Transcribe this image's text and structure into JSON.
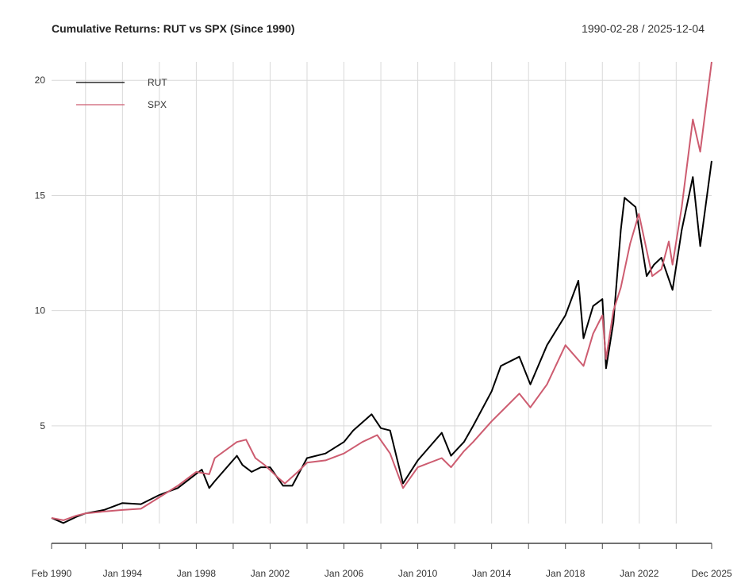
{
  "chart_data": {
    "type": "line",
    "title": "Cumulative Returns: RUT vs SPX (Since 1990)",
    "date_range": "1990-02-28 / 2025-12-04",
    "xlabel": "",
    "ylabel": "",
    "xlim": [
      1990.16,
      2025.92
    ],
    "ylim": [
      0.76,
      20.8
    ],
    "grid": true,
    "legend_position": "top-left",
    "y_ticks": [
      5,
      10,
      15,
      20
    ],
    "x_ticks": [
      {
        "x": 1990.16,
        "label": "Feb 1990"
      },
      {
        "x": 1992.0,
        "label": ""
      },
      {
        "x": 1994.0,
        "label": "Jan 1994"
      },
      {
        "x": 1996.0,
        "label": ""
      },
      {
        "x": 1998.0,
        "label": "Jan 1998"
      },
      {
        "x": 2000.0,
        "label": ""
      },
      {
        "x": 2002.0,
        "label": "Jan 2002"
      },
      {
        "x": 2004.0,
        "label": ""
      },
      {
        "x": 2006.0,
        "label": "Jan 2006"
      },
      {
        "x": 2008.0,
        "label": ""
      },
      {
        "x": 2010.0,
        "label": "Jan 2010"
      },
      {
        "x": 2012.0,
        "label": ""
      },
      {
        "x": 2014.0,
        "label": "Jan 2014"
      },
      {
        "x": 2016.0,
        "label": ""
      },
      {
        "x": 2018.0,
        "label": "Jan 2018"
      },
      {
        "x": 2020.0,
        "label": ""
      },
      {
        "x": 2022.0,
        "label": "Jan 2022"
      },
      {
        "x": 2024.0,
        "label": ""
      },
      {
        "x": 2025.92,
        "label": "Dec 2025"
      }
    ],
    "series": [
      {
        "name": "RUT",
        "color": "#000000",
        "x": [
          1990.16,
          1990.8,
          1991.5,
          1992,
          1993,
          1994,
          1995,
          1996,
          1997,
          1998.3,
          1998.7,
          1999,
          2000.2,
          2000.5,
          2001,
          2001.5,
          2002,
          2002.7,
          2003.2,
          2004,
          2005,
          2006,
          2006.5,
          2007.5,
          2008,
          2008.5,
          2009.2,
          2010,
          2011.3,
          2011.8,
          2012.5,
          2013,
          2014,
          2014.5,
          2015.5,
          2016.1,
          2017,
          2018,
          2018.7,
          2018.98,
          2019.5,
          2020.0,
          2020.2,
          2020.6,
          2021.0,
          2021.2,
          2021.8,
          2022.4,
          2022.8,
          2023.2,
          2023.8,
          2024.3,
          2024.9,
          2025.3,
          2025.92
        ],
        "y": [
          1.0,
          0.78,
          1.05,
          1.2,
          1.35,
          1.65,
          1.6,
          2.0,
          2.3,
          3.1,
          2.3,
          2.6,
          3.7,
          3.3,
          3.0,
          3.2,
          3.2,
          2.4,
          2.4,
          3.6,
          3.8,
          4.3,
          4.8,
          5.5,
          4.9,
          4.8,
          2.5,
          3.5,
          4.7,
          3.7,
          4.3,
          5.0,
          6.5,
          7.6,
          8.0,
          6.8,
          8.5,
          9.8,
          11.3,
          8.8,
          10.2,
          10.5,
          7.5,
          9.5,
          13.5,
          14.9,
          14.5,
          11.5,
          12.0,
          12.3,
          10.9,
          13.5,
          15.8,
          12.8,
          16.5
        ]
      },
      {
        "name": "SPX",
        "color": "#CD5C70",
        "x": [
          1990.16,
          1990.8,
          1991.5,
          1992,
          1993,
          1994,
          1995,
          1996,
          1997,
          1998,
          1998.7,
          1999,
          2000.2,
          2000.7,
          2001.2,
          2001.7,
          2002.5,
          2002.8,
          2003.5,
          2004,
          2005,
          2006,
          2007,
          2007.8,
          2008.5,
          2009.2,
          2010,
          2011.3,
          2011.8,
          2012.5,
          2013,
          2014,
          2015.5,
          2016.1,
          2017,
          2018,
          2018.98,
          2019.5,
          2020.0,
          2020.2,
          2020.6,
          2021.0,
          2021.5,
          2021.98,
          2022.7,
          2023.2,
          2023.6,
          2023.8,
          2024.3,
          2024.9,
          2025.3,
          2025.92
        ],
        "y": [
          1.0,
          0.9,
          1.1,
          1.2,
          1.28,
          1.35,
          1.4,
          1.9,
          2.4,
          3.0,
          2.9,
          3.6,
          4.3,
          4.4,
          3.6,
          3.3,
          2.7,
          2.5,
          3.0,
          3.4,
          3.5,
          3.8,
          4.3,
          4.6,
          3.8,
          2.3,
          3.2,
          3.6,
          3.2,
          3.9,
          4.3,
          5.2,
          6.4,
          5.8,
          6.8,
          8.5,
          7.6,
          9.0,
          9.8,
          7.9,
          10.0,
          11.0,
          12.9,
          14.2,
          11.5,
          11.8,
          13.0,
          12.0,
          14.5,
          18.3,
          16.9,
          20.8
        ]
      }
    ]
  }
}
